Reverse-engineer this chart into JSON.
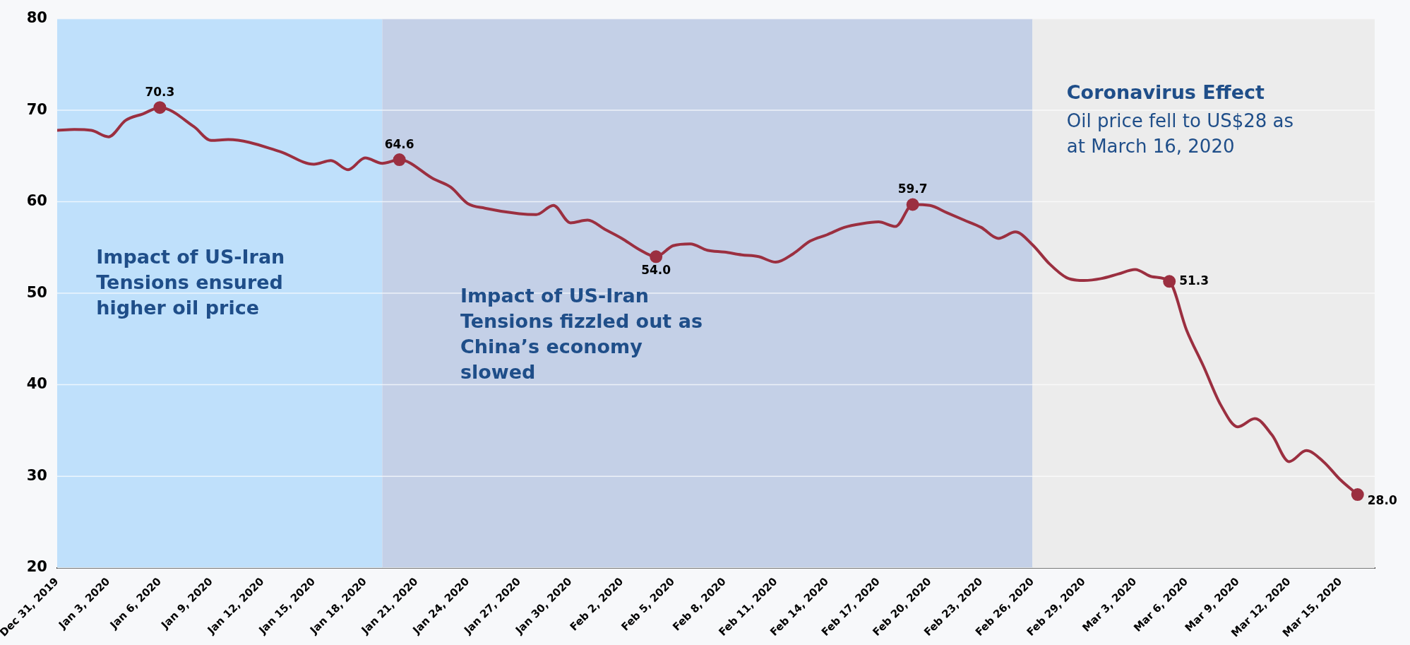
{
  "chart_data": {
    "type": "line",
    "x": [
      "2019-12-31",
      "2020-01-01",
      "2020-01-02",
      "2020-01-03",
      "2020-01-04",
      "2020-01-05",
      "2020-01-06",
      "2020-01-08",
      "2020-01-09",
      "2020-01-10",
      "2020-01-13",
      "2020-01-15",
      "2020-01-16",
      "2020-01-17",
      "2020-01-18",
      "2020-01-19",
      "2020-01-20",
      "2020-01-22",
      "2020-01-23",
      "2020-01-24",
      "2020-01-25",
      "2020-01-27",
      "2020-01-28",
      "2020-01-29",
      "2020-01-30",
      "2020-01-31",
      "2020-02-01",
      "2020-02-02",
      "2020-02-03",
      "2020-02-04",
      "2020-02-05",
      "2020-02-06",
      "2020-02-07",
      "2020-02-08",
      "2020-02-09",
      "2020-02-10",
      "2020-02-11",
      "2020-02-12",
      "2020-02-13",
      "2020-02-14",
      "2020-02-15",
      "2020-02-16",
      "2020-02-17",
      "2020-02-18",
      "2020-02-19",
      "2020-02-20",
      "2020-02-21",
      "2020-02-22",
      "2020-02-23",
      "2020-02-24",
      "2020-02-25",
      "2020-02-26",
      "2020-02-27",
      "2020-02-28",
      "2020-02-29",
      "2020-03-01",
      "2020-03-02",
      "2020-03-03",
      "2020-03-04",
      "2020-03-05",
      "2020-03-06",
      "2020-03-07",
      "2020-03-08",
      "2020-03-09",
      "2020-03-10",
      "2020-03-11",
      "2020-03-12",
      "2020-03-13",
      "2020-03-14",
      "2020-03-15",
      "2020-03-16"
    ],
    "series": [
      {
        "color": "#9b2f40",
        "values": [
          67.8,
          67.9,
          67.8,
          67.1,
          68.9,
          69.6,
          70.3,
          68.2,
          66.7,
          66.8,
          65.5,
          64.1,
          64.5,
          63.5,
          64.8,
          64.2,
          64.6,
          62.5,
          61.6,
          59.8,
          59.3,
          58.7,
          58.6,
          59.6,
          57.7,
          58.0,
          57.0,
          56.0,
          54.8,
          54.0,
          55.2,
          55.4,
          54.7,
          54.5,
          54.2,
          54.0,
          53.4,
          54.3,
          55.7,
          56.4,
          57.2,
          57.6,
          57.8,
          57.3,
          59.7,
          59.6,
          58.8,
          58.0,
          57.2,
          56.0,
          56.7,
          55.3,
          53.2,
          51.7,
          51.4,
          51.6,
          52.1,
          52.6,
          51.8,
          51.3,
          46.0,
          42.0,
          37.8,
          35.4,
          36.3,
          34.5,
          31.6,
          32.8,
          31.6,
          29.6,
          28.0
        ],
        "value_labels": [
          null,
          null,
          null,
          null,
          null,
          null,
          "70.3",
          null,
          null,
          null,
          null,
          null,
          null,
          null,
          null,
          null,
          "64.6",
          null,
          null,
          null,
          null,
          null,
          null,
          null,
          null,
          null,
          null,
          null,
          null,
          "54.0",
          null,
          null,
          null,
          null,
          null,
          null,
          null,
          null,
          null,
          null,
          null,
          null,
          null,
          null,
          "59.7",
          null,
          null,
          null,
          null,
          null,
          null,
          null,
          null,
          null,
          null,
          null,
          null,
          null,
          null,
          "51.3",
          null,
          null,
          null,
          null,
          null,
          null,
          null,
          null,
          null,
          null,
          "28.0"
        ]
      }
    ],
    "xlim": [
      "2019-12-31",
      "2020-03-17"
    ],
    "xticks": [
      {
        "value": "2019-12-31",
        "label": "Dec 31, 2019"
      },
      {
        "value": "2020-01-03",
        "label": "Jan 3, 2020"
      },
      {
        "value": "2020-01-06",
        "label": "Jan 6, 2020"
      },
      {
        "value": "2020-01-09",
        "label": "Jan 9, 2020"
      },
      {
        "value": "2020-01-12",
        "label": "Jan 12, 2020"
      },
      {
        "value": "2020-01-15",
        "label": "Jan 15, 2020"
      },
      {
        "value": "2020-01-18",
        "label": "Jan 18, 2020"
      },
      {
        "value": "2020-01-21",
        "label": "Jan 21, 2020"
      },
      {
        "value": "2020-01-24",
        "label": "Jan 24, 2020"
      },
      {
        "value": "2020-01-27",
        "label": "Jan 27, 2020"
      },
      {
        "value": "2020-01-30",
        "label": "Jan 30, 2020"
      },
      {
        "value": "2020-02-02",
        "label": "Feb 2, 2020"
      },
      {
        "value": "2020-02-05",
        "label": "Feb 5, 2020"
      },
      {
        "value": "2020-02-08",
        "label": "Feb 8, 2020"
      },
      {
        "value": "2020-02-11",
        "label": "Feb 11, 2020"
      },
      {
        "value": "2020-02-14",
        "label": "Feb 14, 2020"
      },
      {
        "value": "2020-02-17",
        "label": "Feb 17, 2020"
      },
      {
        "value": "2020-02-20",
        "label": "Feb 20, 2020"
      },
      {
        "value": "2020-02-23",
        "label": "Feb 23, 2020"
      },
      {
        "value": "2020-02-26",
        "label": "Feb 26, 2020"
      },
      {
        "value": "2020-02-29",
        "label": "Feb 29, 2020"
      },
      {
        "value": "2020-03-03",
        "label": "Mar 3, 2020"
      },
      {
        "value": "2020-03-06",
        "label": "Mar 6, 2020"
      },
      {
        "value": "2020-03-09",
        "label": "Mar 9, 2020"
      },
      {
        "value": "2020-03-12",
        "label": "Mar 12, 2020"
      },
      {
        "value": "2020-03-15",
        "label": "Mar 15, 2020"
      }
    ],
    "ylim": [
      20,
      80
    ],
    "yticks": [
      20,
      30,
      40,
      50,
      60,
      70,
      80
    ],
    "grid": "y",
    "legend": false,
    "bands": [
      {
        "axis": "x",
        "from": "2019-12-31",
        "to": "2020-01-19",
        "label": "Impact of US-Iran Tensions ensured higher oil price",
        "color": "#bfe0fb"
      },
      {
        "axis": "x",
        "from": "2020-01-19",
        "to": "2020-02-26",
        "label": "Impact of US-Iran Tensions fizzled out as China’s economy slowed",
        "color": "#c4d0e7"
      },
      {
        "axis": "x",
        "from": "2020-02-26",
        "to": "2020-03-17",
        "label": "Coronavirus Effect",
        "color": "#ececec"
      }
    ],
    "annotations": [
      "Oil price fell to US$28 as at March 16, 2020"
    ]
  }
}
